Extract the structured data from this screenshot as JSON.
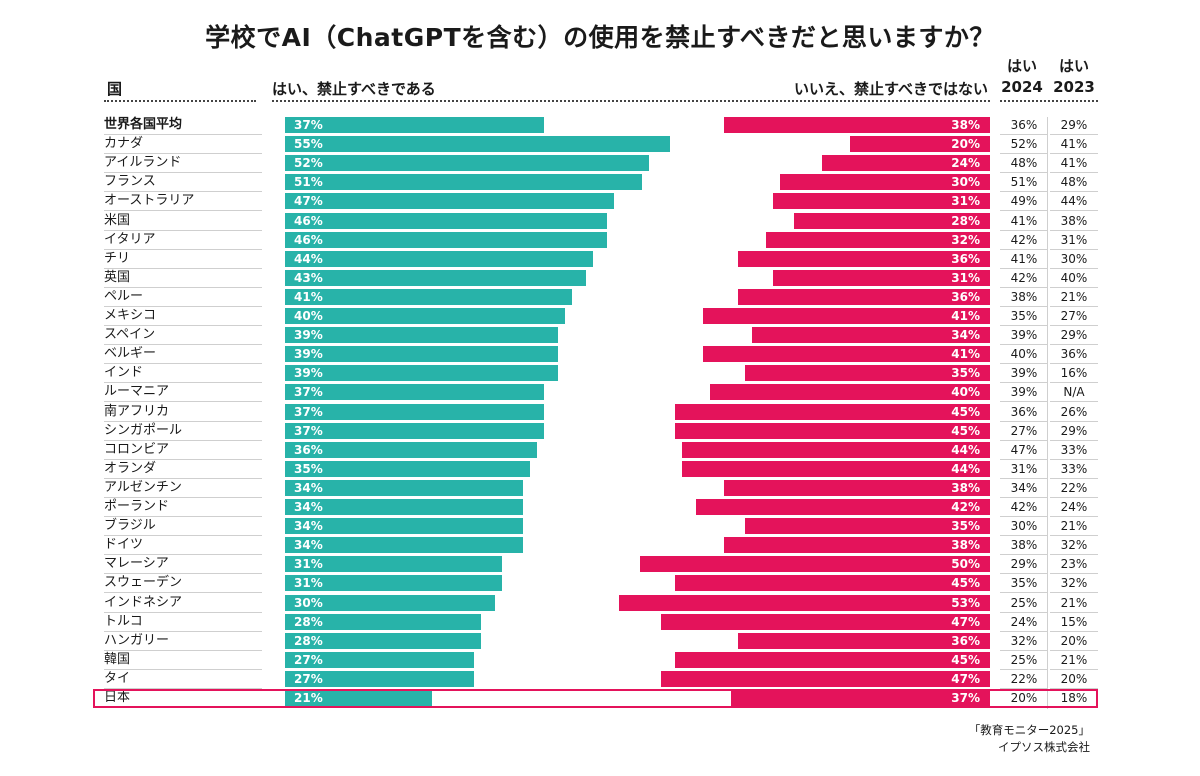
{
  "title": "学校でAI（ChatGPTを含む）の使用を禁止すべきだと思いますか？",
  "headers": {
    "country": "国",
    "yes": "はい、禁止すべきである",
    "no": "いいえ、禁止すべきではない",
    "yes2024": "はい 2024",
    "yes2023": "はい 2023"
  },
  "source": [
    "「教育モニター2025」",
    "イプソス株式会社"
  ],
  "colors": {
    "yes": "#28b3a9",
    "no": "#e4135b",
    "highlight": "#e4135b"
  },
  "chart_data": {
    "type": "bar",
    "orientation": "horizontal-diverging",
    "categories": [
      "世界各国平均",
      "カナダ",
      "アイルランド",
      "フランス",
      "オーストラリア",
      "米国",
      "イタリア",
      "チリ",
      "英国",
      "ペルー",
      "メキシコ",
      "スペイン",
      "ベルギー",
      "インド",
      "ルーマニア",
      "南アフリカ",
      "シンガポール",
      "コロンビア",
      "オランダ",
      "アルゼンチン",
      "ポーランド",
      "ブラジル",
      "ドイツ",
      "マレーシア",
      "スウェーデン",
      "インドネシア",
      "トルコ",
      "ハンガリー",
      "韓国",
      "タイ",
      "日本"
    ],
    "series": [
      {
        "name": "はい、禁止すべきである",
        "values": [
          37,
          55,
          52,
          51,
          47,
          46,
          46,
          44,
          43,
          41,
          40,
          39,
          39,
          39,
          37,
          37,
          37,
          36,
          35,
          34,
          34,
          34,
          34,
          31,
          31,
          30,
          28,
          28,
          27,
          27,
          21
        ]
      },
      {
        "name": "いいえ、禁止すべきではない",
        "values": [
          38,
          20,
          24,
          30,
          31,
          28,
          32,
          36,
          31,
          36,
          41,
          34,
          41,
          35,
          40,
          45,
          45,
          44,
          44,
          38,
          42,
          35,
          38,
          50,
          45,
          53,
          47,
          36,
          45,
          47,
          37
        ]
      }
    ],
    "yes_2024": [
      "36%",
      "52%",
      "48%",
      "51%",
      "49%",
      "41%",
      "42%",
      "41%",
      "42%",
      "38%",
      "35%",
      "39%",
      "40%",
      "39%",
      "39%",
      "36%",
      "27%",
      "47%",
      "31%",
      "34%",
      "42%",
      "30%",
      "38%",
      "29%",
      "35%",
      "25%",
      "24%",
      "32%",
      "25%",
      "22%",
      "20%"
    ],
    "yes_2023": [
      "29%",
      "41%",
      "41%",
      "48%",
      "44%",
      "38%",
      "31%",
      "30%",
      "40%",
      "21%",
      "27%",
      "29%",
      "36%",
      "16%",
      "N/A",
      "26%",
      "29%",
      "33%",
      "33%",
      "22%",
      "24%",
      "21%",
      "32%",
      "23%",
      "32%",
      "21%",
      "15%",
      "20%",
      "21%",
      "20%",
      "18%"
    ],
    "bold_category": "世界各国平均",
    "highlighted_category": "日本"
  }
}
